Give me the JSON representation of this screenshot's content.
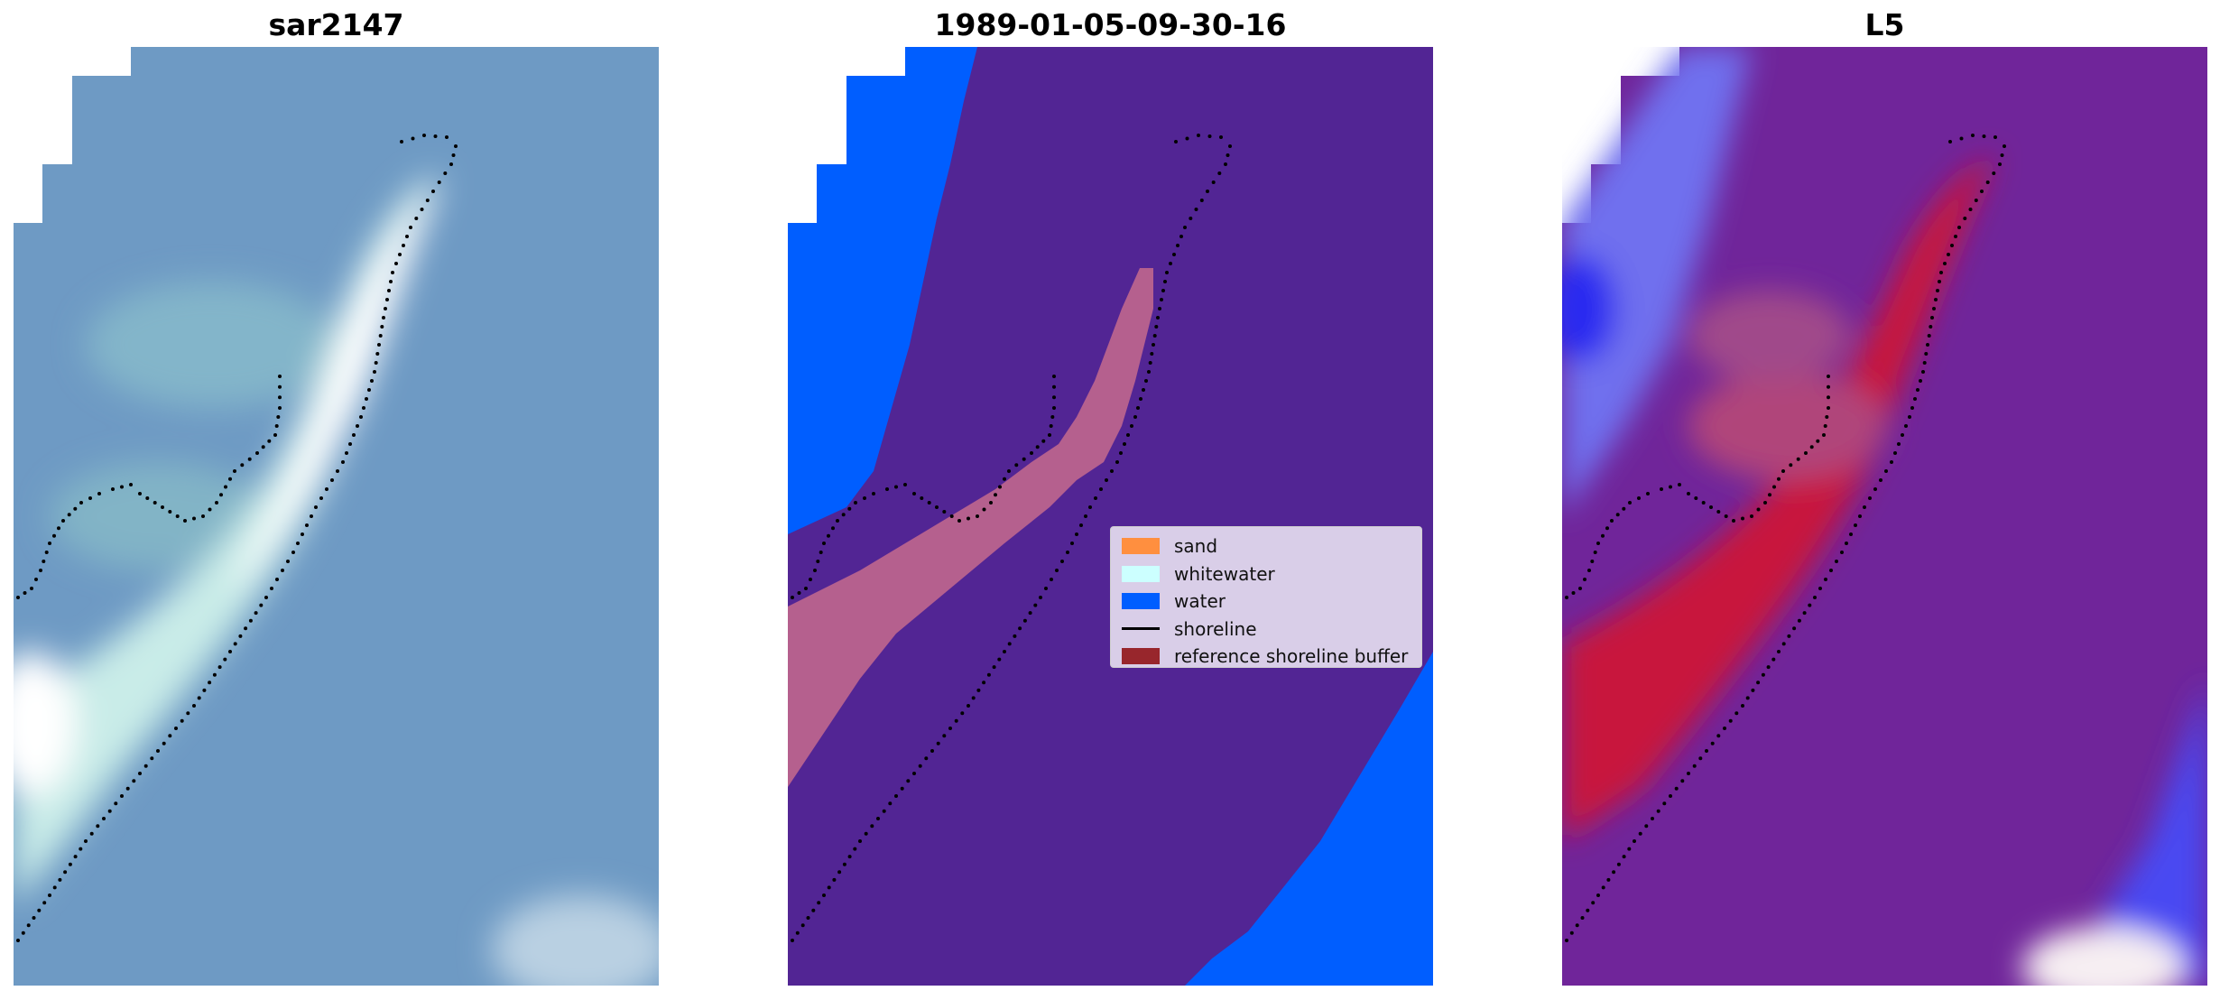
{
  "panels": [
    {
      "title": "sar2147"
    },
    {
      "title": "1989-01-05-09-30-16"
    },
    {
      "title": "L5"
    }
  ],
  "legend": {
    "items": [
      {
        "label": "sand",
        "color": "#ff8f3f",
        "kind": "patch"
      },
      {
        "label": "whitewater",
        "color": "#ccffff",
        "kind": "patch"
      },
      {
        "label": "water",
        "color": "#005eff",
        "kind": "patch"
      },
      {
        "label": "shoreline",
        "color": "#000000",
        "kind": "line"
      },
      {
        "label": "reference shoreline buffer",
        "color": "#98262c",
        "kind": "patch"
      }
    ]
  },
  "colors": {
    "rgb_water": "#6e9ac4",
    "rgb_sand": "#dff2ef",
    "class_background": "#522594",
    "class_water": "#005eff",
    "class_sand_overlay": "#b5608e",
    "index_background": "#70259a",
    "index_sand": "#c8123c",
    "index_water": "#2f2ff0",
    "shoreline_points": "#000000"
  }
}
